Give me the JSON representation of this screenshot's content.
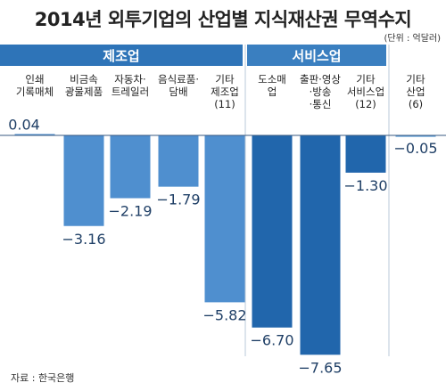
{
  "title": "2014년 외투기업의 산업별 지식재산권 무역수지",
  "unit": "(단위 : 억달러)",
  "groups": {
    "manufacturing": "제조업",
    "services": "서비스업"
  },
  "source": "자료 : 한국은행",
  "colors": {
    "header": "#2e74b8",
    "manufacturing_bar": "#4f8fcf",
    "services_bar": "#2166ac",
    "other_bar": "#5b9bd5"
  },
  "chart_data": {
    "type": "bar",
    "title": "2014년 외투기업의 산업별 지식재산권 무역수지",
    "unit": "억달러",
    "categories": [
      "인쇄\n기록매체",
      "비금속\n광물제품",
      "자동차·\n트레일러",
      "음식료품·\n담배",
      "기타\n제조업\n(11)",
      "도소매\n업",
      "출판·영상\n·방송\n·통신",
      "기타\n서비스업\n(12)",
      "기타\n산업\n(6)"
    ],
    "groups": [
      "manufacturing",
      "manufacturing",
      "manufacturing",
      "manufacturing",
      "manufacturing",
      "services",
      "services",
      "services",
      "other"
    ],
    "values": [
      0.04,
      -3.16,
      -2.19,
      -1.79,
      -5.82,
      -6.7,
      -7.65,
      -1.3,
      -0.05
    ],
    "value_labels": [
      "0.04",
      "−3.16",
      "−2.19",
      "−1.79",
      "−5.82",
      "−6.70",
      "−7.65",
      "−1.30",
      "−0.05"
    ]
  }
}
